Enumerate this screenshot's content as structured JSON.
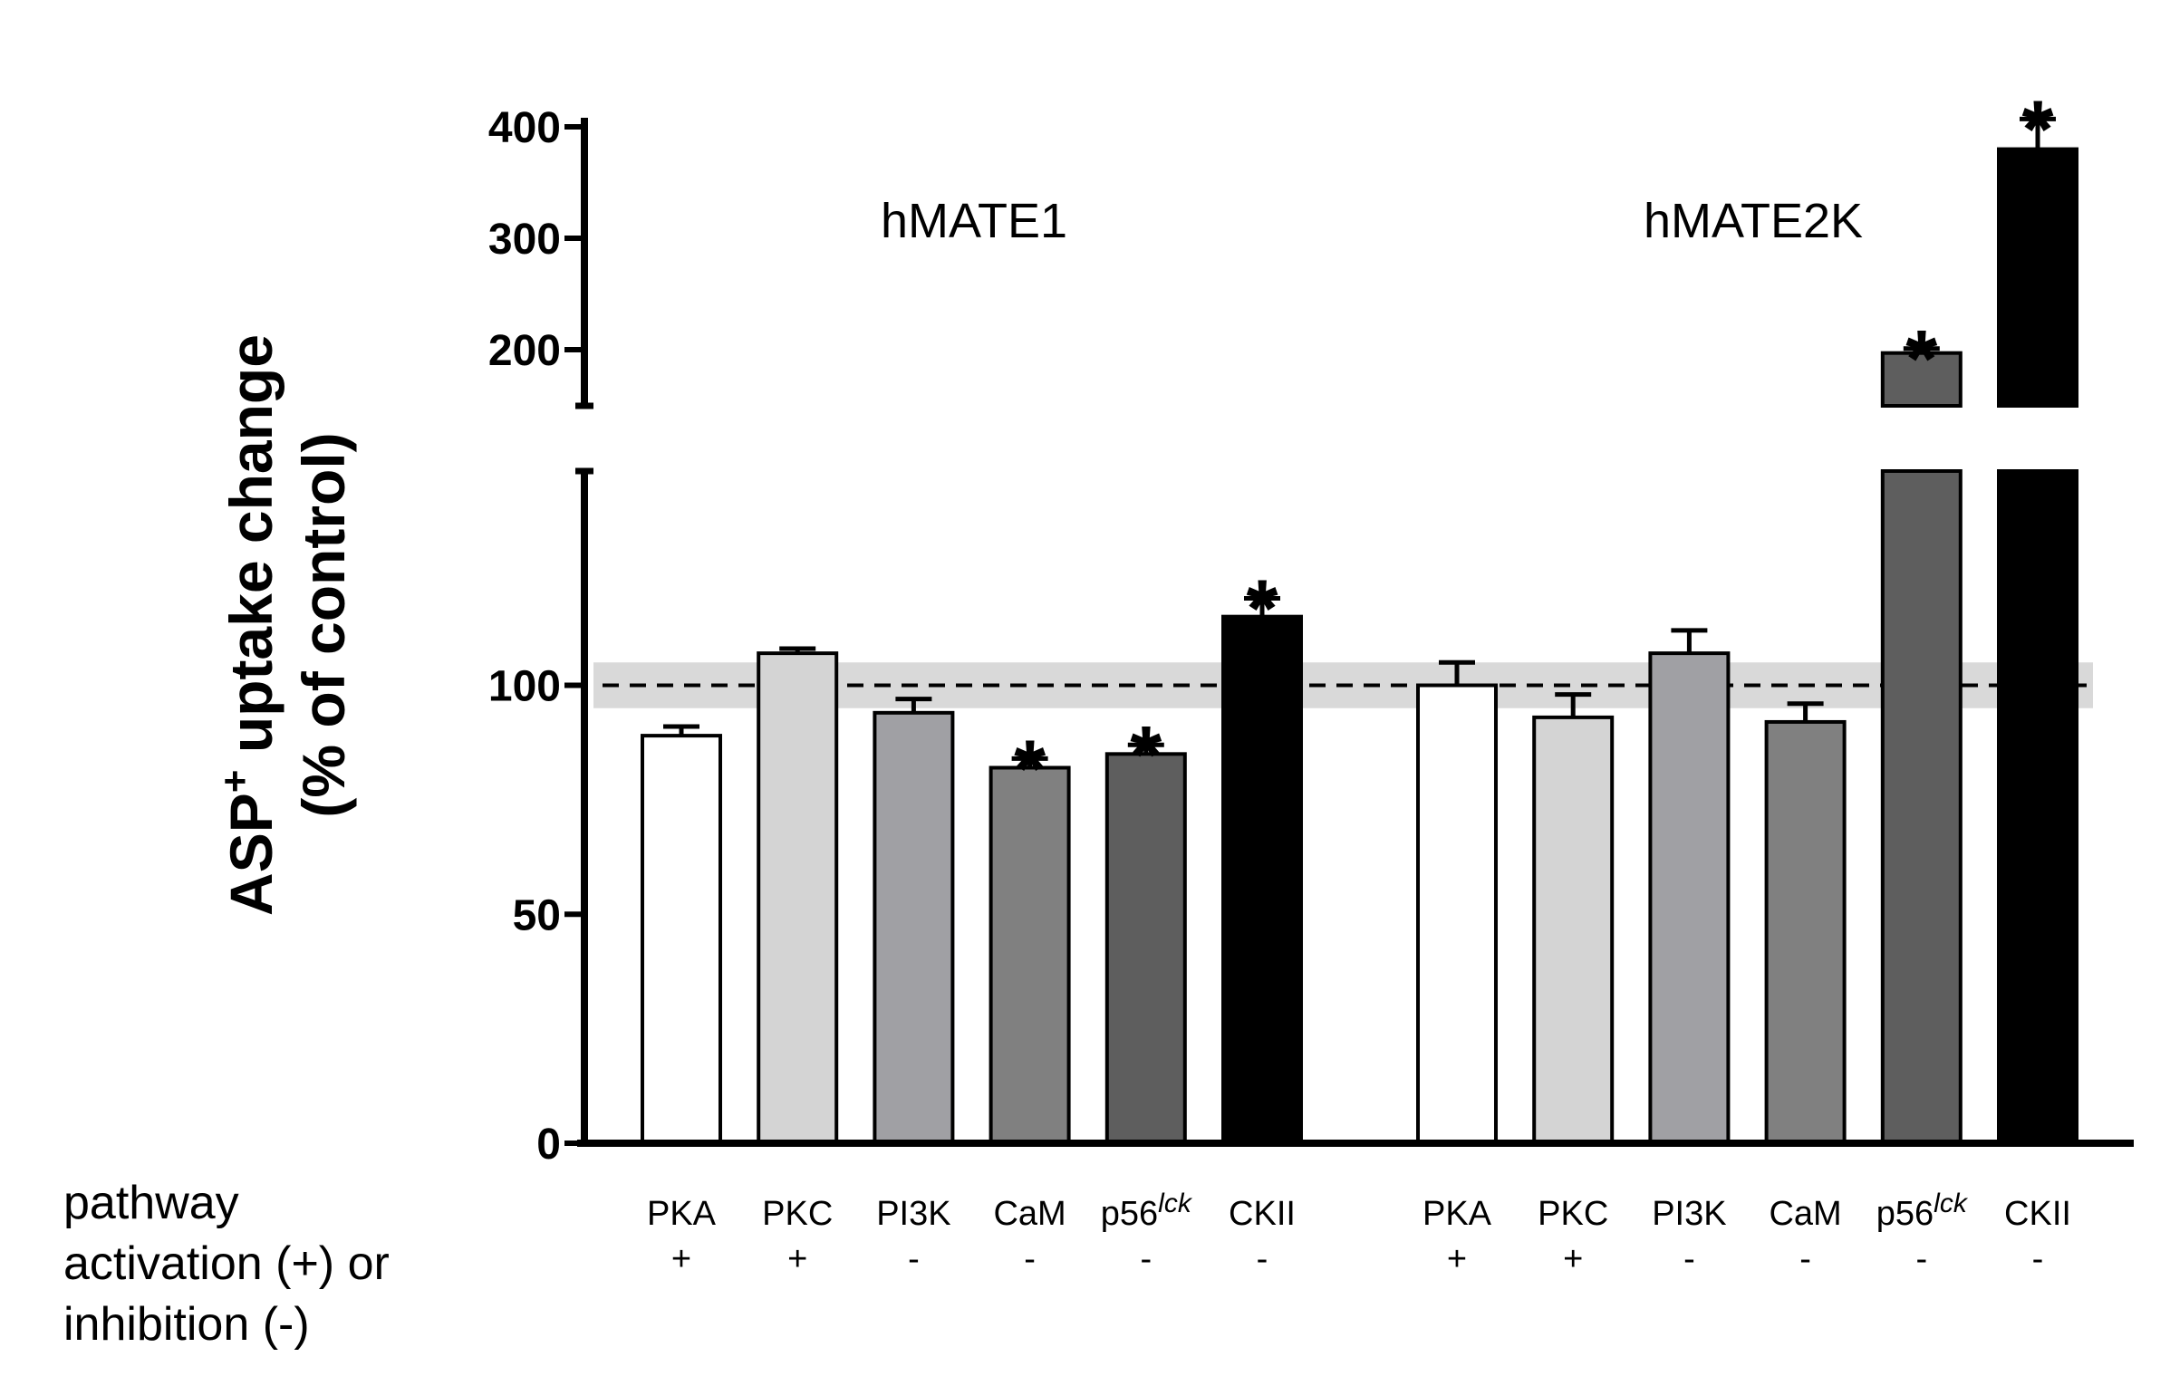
{
  "chart_data": {
    "type": "bar",
    "ylabel_line1": "ASP",
    "ylabel_sup": "+",
    "ylabel_line1_rest": " uptake change",
    "ylabel_line2": "(% of control)",
    "yticks_lower": [
      "0",
      "50",
      "100"
    ],
    "yticks_upper": [
      "200",
      "300",
      "400"
    ],
    "broken_axis": true,
    "reference_line": 100,
    "reference_band": [
      95,
      105
    ],
    "pathway_label": [
      "pathway",
      "activation (+) or",
      "inhibition (-)"
    ],
    "groups": [
      {
        "name": "hMATE1",
        "bars": [
          {
            "category": "PKA",
            "sign": "+",
            "value": 89,
            "error": 2,
            "color": "#ffffff",
            "significant": false
          },
          {
            "category": "PKC",
            "sign": "+",
            "value": 107,
            "error": 1,
            "color": "#d4d4d4",
            "significant": false
          },
          {
            "category": "PI3K",
            "sign": "-",
            "value": 94,
            "error": 3,
            "color": "#a0a0a4",
            "significant": false
          },
          {
            "category": "CaM",
            "sign": "-",
            "value": 82,
            "error": 2,
            "color": "#808080",
            "significant": true
          },
          {
            "category": "p56",
            "category_sup": "lck",
            "sign": "-",
            "value": 85,
            "error": 2,
            "color": "#5e5e5e",
            "significant": true
          },
          {
            "category": "CKII",
            "sign": "-",
            "value": 115,
            "error": 4,
            "color": "#000000",
            "significant": true
          }
        ]
      },
      {
        "name": "hMATE2K",
        "bars": [
          {
            "category": "PKA",
            "sign": "+",
            "value": 100,
            "error": 5,
            "color": "#ffffff",
            "significant": false
          },
          {
            "category": "PKC",
            "sign": "+",
            "value": 93,
            "error": 5,
            "color": "#d4d4d4",
            "significant": false
          },
          {
            "category": "PI3K",
            "sign": "-",
            "value": 107,
            "error": 5,
            "color": "#a0a0a4",
            "significant": false
          },
          {
            "category": "CaM",
            "sign": "-",
            "value": 92,
            "error": 4,
            "color": "#808080",
            "significant": false
          },
          {
            "category": "p56",
            "category_sup": "lck",
            "sign": "-",
            "value": 197,
            "error": 4,
            "color": "#5e5e5e",
            "significant": true
          },
          {
            "category": "CKII",
            "sign": "-",
            "value": 380,
            "error": 27,
            "color": "#000000",
            "significant": true
          }
        ]
      }
    ],
    "significance_marker": "*"
  }
}
